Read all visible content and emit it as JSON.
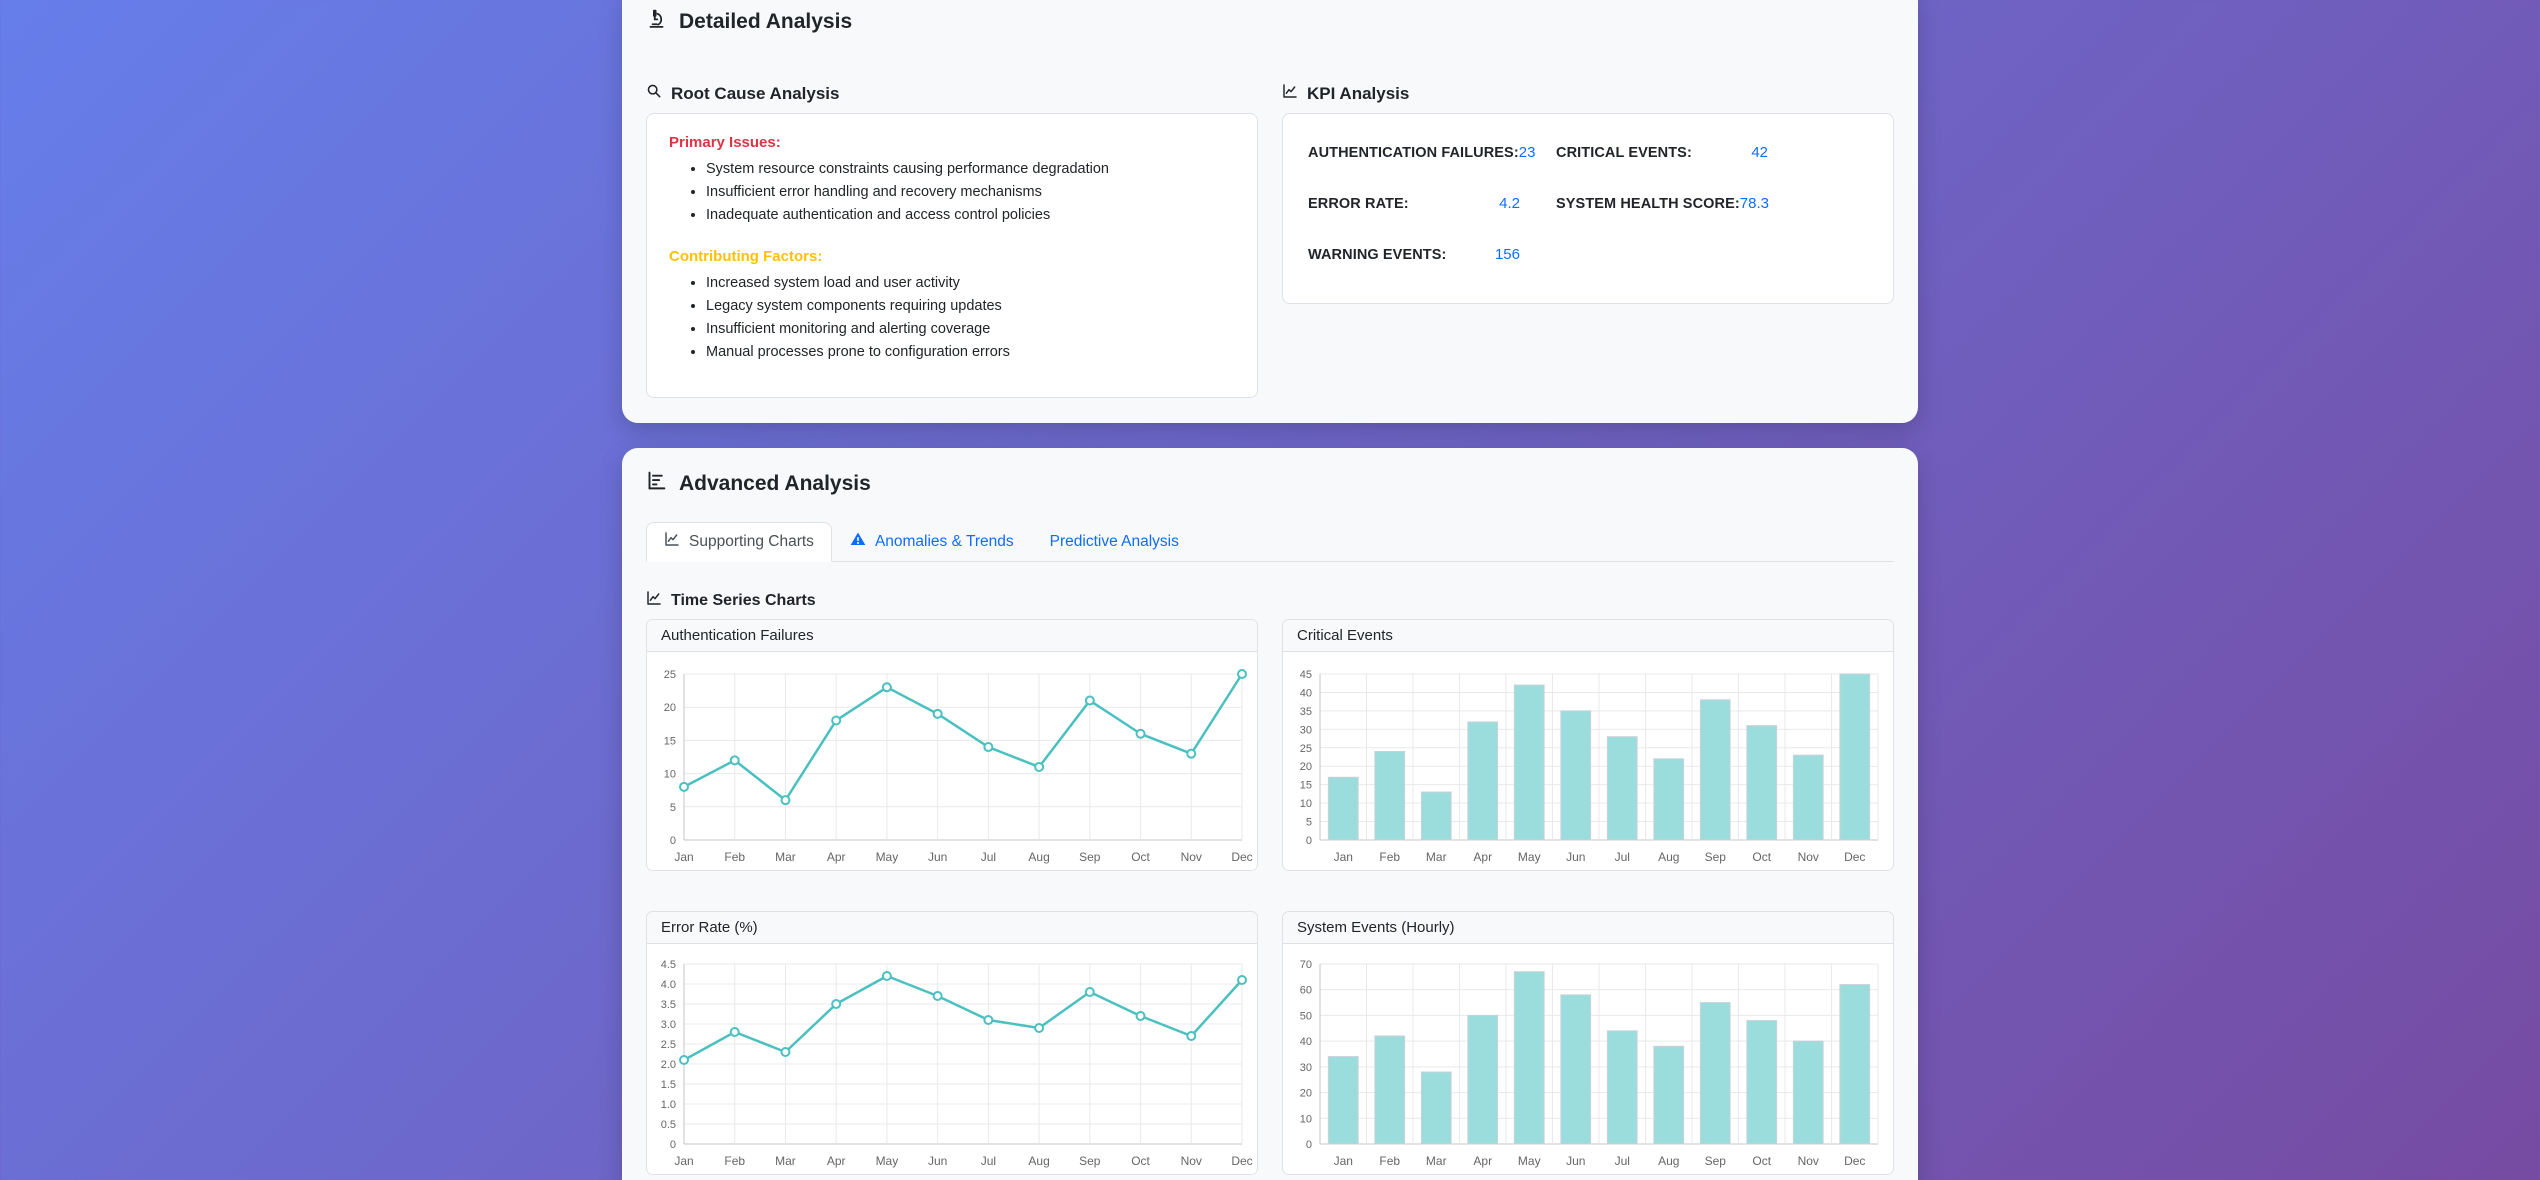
{
  "page": {
    "detailed": {
      "title": "Detailed Analysis",
      "root_cause": {
        "heading": "Root Cause Analysis",
        "primary_label": "Primary Issues:",
        "primary_items": [
          "System resource constraints causing performance degradation",
          "Insufficient error handling and recovery mechanisms",
          "Inadequate authentication and access control policies"
        ],
        "contributing_label": "Contributing Factors:",
        "contributing_items": [
          "Increased system load and user activity",
          "Legacy system components requiring updates",
          "Insufficient monitoring and alerting coverage",
          "Manual processes prone to configuration errors"
        ]
      },
      "kpi": {
        "heading": "KPI Analysis",
        "items": [
          {
            "label": "AUTHENTICATION FAILURES:",
            "value": "23"
          },
          {
            "label": "CRITICAL EVENTS:",
            "value": "42"
          },
          {
            "label": "ERROR RATE:",
            "value": "4.2"
          },
          {
            "label": "SYSTEM HEALTH SCORE:",
            "value": "78.3"
          },
          {
            "label": "WARNING EVENTS:",
            "value": "156"
          }
        ]
      }
    },
    "advanced": {
      "title": "Advanced Analysis",
      "tabs": [
        {
          "label": "Supporting Charts",
          "active": true
        },
        {
          "label": "Anomalies & Trends",
          "active": false
        },
        {
          "label": "Predictive Analysis",
          "active": false
        }
      ],
      "subsection": "Time Series Charts"
    }
  },
  "colors": {
    "background_gradient_start": "#667eea",
    "background_gradient_end": "#764ba2",
    "accent_blue": "#0d6efd",
    "primary_issues_red": "#dc3545",
    "contributing_factors_amber": "#ffc107",
    "chart_teal": "#4bc0c0",
    "chart_bar_fill": "#9bdcdc"
  },
  "chart_data": [
    {
      "type": "line",
      "title": "Authentication Failures",
      "categories": [
        "Jan",
        "Feb",
        "Mar",
        "Apr",
        "May",
        "Jun",
        "Jul",
        "Aug",
        "Sep",
        "Oct",
        "Nov",
        "Dec"
      ],
      "values": [
        8,
        12,
        6,
        18,
        23,
        19,
        14,
        11,
        21,
        16,
        13,
        25
      ],
      "ylim": [
        0,
        25
      ],
      "ytick_step": 5,
      "y_decimals": 0,
      "grid": true,
      "legend": "none",
      "line_color": "#4bc0c0",
      "point_fill": "#ffffff"
    },
    {
      "type": "bar",
      "title": "Critical Events",
      "categories": [
        "Jan",
        "Feb",
        "Mar",
        "Apr",
        "May",
        "Jun",
        "Jul",
        "Aug",
        "Sep",
        "Oct",
        "Nov",
        "Dec"
      ],
      "values": [
        17,
        24,
        13,
        32,
        42,
        35,
        28,
        22,
        38,
        31,
        23,
        45
      ],
      "ylim": [
        0,
        45
      ],
      "ytick_step": 5,
      "y_decimals": 0,
      "grid": true,
      "legend": "none",
      "bar_fill": "#9bdcdc",
      "bar_border": "#c9d2d8"
    },
    {
      "type": "line",
      "title": "Error Rate (%)",
      "categories": [
        "Jan",
        "Feb",
        "Mar",
        "Apr",
        "May",
        "Jun",
        "Jul",
        "Aug",
        "Sep",
        "Oct",
        "Nov",
        "Dec"
      ],
      "values": [
        2.1,
        2.8,
        2.3,
        3.5,
        4.2,
        3.7,
        3.1,
        2.9,
        3.8,
        3.2,
        2.7,
        4.1
      ],
      "ylim": [
        0,
        4.5
      ],
      "ytick_step": 0.5,
      "y_decimals": 1,
      "grid": true,
      "legend": "none",
      "line_color": "#4bc0c0",
      "point_fill": "#ffffff"
    },
    {
      "type": "bar",
      "title": "System Events (Hourly)",
      "categories": [
        "Jan",
        "Feb",
        "Mar",
        "Apr",
        "May",
        "Jun",
        "Jul",
        "Aug",
        "Sep",
        "Oct",
        "Nov",
        "Dec"
      ],
      "values": [
        34,
        42,
        28,
        50,
        67,
        58,
        44,
        38,
        55,
        48,
        40,
        62
      ],
      "ylim": [
        0,
        70
      ],
      "ytick_step": 10,
      "y_decimals": 0,
      "grid": true,
      "legend": "none",
      "bar_fill": "#9bdcdc",
      "bar_border": "#c9d2d8"
    }
  ]
}
